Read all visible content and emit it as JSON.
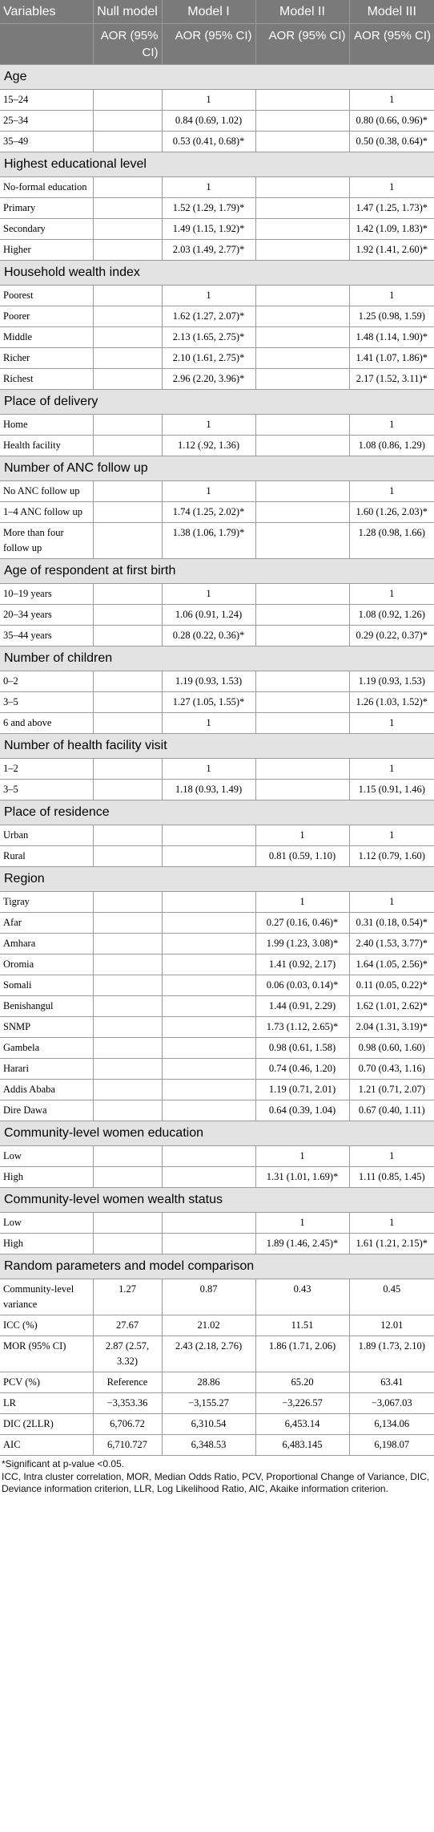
{
  "header": {
    "variables": "Variables",
    "null_model": "Null model",
    "model1": "Model I",
    "model2": "Model II",
    "model3": "Model III",
    "sub_null": "AOR (95% CI)",
    "sub_m1": "AOR (95% CI)",
    "sub_m2": "AOR (95% CI)",
    "sub_m3": "AOR (95% CI)"
  },
  "sections": [
    {
      "title": "Age",
      "rows": [
        {
          "label": "15–24",
          "null": "",
          "m1": "1",
          "m2": "",
          "m3": "1"
        },
        {
          "label": "25–34",
          "null": "",
          "m1": "0.84 (0.69, 1.02)",
          "m2": "",
          "m3": "0.80 (0.66, 0.96)*"
        },
        {
          "label": "35–49",
          "null": "",
          "m1": "0.53 (0.41, 0.68)*",
          "m2": "",
          "m3": "0.50 (0.38, 0.64)*"
        }
      ]
    },
    {
      "title": "Highest educational level",
      "rows": [
        {
          "label": "No-formal education",
          "null": "",
          "m1": "1",
          "m2": "",
          "m3": "1"
        },
        {
          "label": "Primary",
          "null": "",
          "m1": "1.52 (1.29, 1.79)*",
          "m2": "",
          "m3": "1.47 (1.25, 1.73)*"
        },
        {
          "label": "Secondary",
          "null": "",
          "m1": "1.49 (1.15, 1.92)*",
          "m2": "",
          "m3": "1.42 (1.09, 1.83)*"
        },
        {
          "label": "Higher",
          "null": "",
          "m1": "2.03 (1.49, 2.77)*",
          "m2": "",
          "m3": "1.92 (1.41, 2.60)*"
        }
      ]
    },
    {
      "title": "Household wealth index",
      "rows": [
        {
          "label": "Poorest",
          "null": "",
          "m1": "1",
          "m2": "",
          "m3": "1"
        },
        {
          "label": "Poorer",
          "null": "",
          "m1": "1.62 (1.27, 2.07)*",
          "m2": "",
          "m3": "1.25 (0.98, 1.59)"
        },
        {
          "label": "Middle",
          "null": "",
          "m1": "2.13 (1.65, 2.75)*",
          "m2": "",
          "m3": "1.48 (1.14, 1.90)*"
        },
        {
          "label": "Richer",
          "null": "",
          "m1": "2.10 (1.61, 2.75)*",
          "m2": "",
          "m3": "1.41 (1.07, 1.86)*"
        },
        {
          "label": "Richest",
          "null": "",
          "m1": "2.96 (2.20, 3.96)*",
          "m2": "",
          "m3": "2.17 (1.52, 3.11)*"
        }
      ]
    },
    {
      "title": "Place of delivery",
      "rows": [
        {
          "label": "Home",
          "null": "",
          "m1": "1",
          "m2": "",
          "m3": "1"
        },
        {
          "label": "Health facility",
          "null": "",
          "m1": "1.12 (.92, 1.36)",
          "m2": "",
          "m3": "1.08 (0.86, 1.29)"
        }
      ]
    },
    {
      "title": "Number of ANC follow up",
      "rows": [
        {
          "label": "No ANC follow up",
          "null": "",
          "m1": "1",
          "m2": "",
          "m3": "1"
        },
        {
          "label": "1–4 ANC follow up",
          "null": "",
          "m1": "1.74 (1.25, 2.02)*",
          "m2": "",
          "m3": "1.60 (1.26, 2.03)*"
        },
        {
          "label": "More than four follow up",
          "null": "",
          "m1": "1.38 (1.06, 1.79)*",
          "m2": "",
          "m3": "1.28 (0.98, 1.66)"
        }
      ]
    },
    {
      "title": "Age of respondent at first birth",
      "rows": [
        {
          "label": "10–19 years",
          "null": "",
          "m1": "1",
          "m2": "",
          "m3": "1"
        },
        {
          "label": "20–34 years",
          "null": "",
          "m1": "1.06 (0.91, 1.24)",
          "m2": "",
          "m3": "1.08 (0.92, 1.26)"
        },
        {
          "label": "35–44 years",
          "null": "",
          "m1": "0.28 (0.22, 0.36)*",
          "m2": "",
          "m3": "0.29 (0.22, 0.37)*"
        }
      ]
    },
    {
      "title": "Number of children",
      "rows": [
        {
          "label": "0–2",
          "null": "",
          "m1": "1.19 (0.93, 1.53)",
          "m2": "",
          "m3": "1.19 (0.93, 1.53)"
        },
        {
          "label": "3–5",
          "null": "",
          "m1": "1.27 (1.05, 1.55)*",
          "m2": "",
          "m3": "1.26 (1.03, 1.52)*"
        },
        {
          "label": "6 and above",
          "null": "",
          "m1": "1",
          "m2": "",
          "m3": "1"
        }
      ]
    },
    {
      "title": "Number of health facility visit",
      "rows": [
        {
          "label": "1–2",
          "null": "",
          "m1": "1",
          "m2": "",
          "m3": "1"
        },
        {
          "label": "3–5",
          "null": "",
          "m1": "1.18 (0.93, 1.49)",
          "m2": "",
          "m3": "1.15 (0.91, 1.46)"
        }
      ]
    },
    {
      "title": "Place of residence",
      "rows": [
        {
          "label": "Urban",
          "null": "",
          "m1": "",
          "m2": "1",
          "m3": "1"
        },
        {
          "label": "Rural",
          "null": "",
          "m1": "",
          "m2": "0.81 (0.59, 1.10)",
          "m3": "1.12 (0.79, 1.60)"
        }
      ]
    },
    {
      "title": "Region",
      "rows": [
        {
          "label": "Tigray",
          "null": "",
          "m1": "",
          "m2": "1",
          "m3": "1"
        },
        {
          "label": "Afar",
          "null": "",
          "m1": "",
          "m2": "0.27 (0.16, 0.46)*",
          "m3": "0.31 (0.18, 0.54)*"
        },
        {
          "label": "Amhara",
          "null": "",
          "m1": "",
          "m2": "1.99 (1.23, 3.08)*",
          "m3": "2.40 (1.53, 3.77)*"
        },
        {
          "label": "Oromia",
          "null": "",
          "m1": "",
          "m2": "1.41 (0.92, 2.17)",
          "m3": "1.64 (1.05, 2.56)*"
        },
        {
          "label": "Somali",
          "null": "",
          "m1": "",
          "m2": "0.06 (0.03, 0.14)*",
          "m3": "0.11 (0.05, 0.22)*"
        },
        {
          "label": "Benishangul",
          "null": "",
          "m1": "",
          "m2": "1.44 (0.91, 2.29)",
          "m3": "1.62 (1.01, 2.62)*"
        },
        {
          "label": "SNMP",
          "null": "",
          "m1": "",
          "m2": "1.73 (1.12, 2.65)*",
          "m3": "2.04 (1.31, 3.19)*"
        },
        {
          "label": "Gambela",
          "null": "",
          "m1": "",
          "m2": "0.98 (0.61, 1.58)",
          "m3": "0.98 (0.60, 1.60)"
        },
        {
          "label": "Harari",
          "null": "",
          "m1": "",
          "m2": "0.74 (0.46, 1.20)",
          "m3": "0.70 (0.43, 1.16)"
        },
        {
          "label": "Addis Ababa",
          "null": "",
          "m1": "",
          "m2": "1.19 (0.71, 2.01)",
          "m3": "1.21 (0.71, 2.07)"
        },
        {
          "label": "Dire Dawa",
          "null": "",
          "m1": "",
          "m2": "0.64 (0.39, 1.04)",
          "m3": "0.67 (0.40, 1.11)"
        }
      ]
    },
    {
      "title": "Community-level women education",
      "rows": [
        {
          "label": "Low",
          "null": "",
          "m1": "",
          "m2": "1",
          "m3": "1"
        },
        {
          "label": "High",
          "null": "",
          "m1": "",
          "m2": "1.31 (1.01, 1.69)*",
          "m3": "1.11 (0.85, 1.45)"
        }
      ]
    },
    {
      "title": "Community-level women wealth status",
      "rows": [
        {
          "label": "Low",
          "null": "",
          "m1": "",
          "m2": "1",
          "m3": "1"
        },
        {
          "label": "High",
          "null": "",
          "m1": "",
          "m2": "1.89 (1.46, 2.45)*",
          "m3": "1.61 (1.21, 2.15)*"
        }
      ]
    },
    {
      "title": "Random parameters and model comparison",
      "rows": [
        {
          "label": "Community-level variance",
          "null": "1.27",
          "m1": "0.87",
          "m2": "0.43",
          "m3": "0.45"
        },
        {
          "label": "ICC (%)",
          "null": "27.67",
          "m1": "21.02",
          "m2": "11.51",
          "m3": "12.01"
        },
        {
          "label": "MOR (95% CI)",
          "null": "2.87 (2.57, 3.32)",
          "m1": "2.43 (2.18, 2.76)",
          "m2": "1.86 (1.71, 2.06)",
          "m3": "1.89 (1.73, 2.10)"
        },
        {
          "label": "PCV (%)",
          "null": "Reference",
          "m1": "28.86",
          "m2": "65.20",
          "m3": "63.41"
        },
        {
          "label": "LR",
          "null": "−3,353.36",
          "m1": "−3,155.27",
          "m2": "−3,226.57",
          "m3": "−3,067.03"
        },
        {
          "label": "DIC (2LLR)",
          "null": "6,706.72",
          "m1": "6,310.54",
          "m2": "6,453.14",
          "m3": "6,134.06"
        },
        {
          "label": "AIC",
          "null": "6,710.727",
          "m1": "6,348.53",
          "m2": "6,483.145",
          "m3": "6,198.07"
        }
      ]
    }
  ],
  "footnotes": {
    "significance": "*Significant at p-value <0.05.",
    "abbreviations": "ICC, Intra cluster correlation, MOR, Median Odds Ratio, PCV, Proportional Change of Variance, DIC, Deviance information criterion, LLR, Log Likelihood Ratio, AIC, Akaike information criterion."
  }
}
